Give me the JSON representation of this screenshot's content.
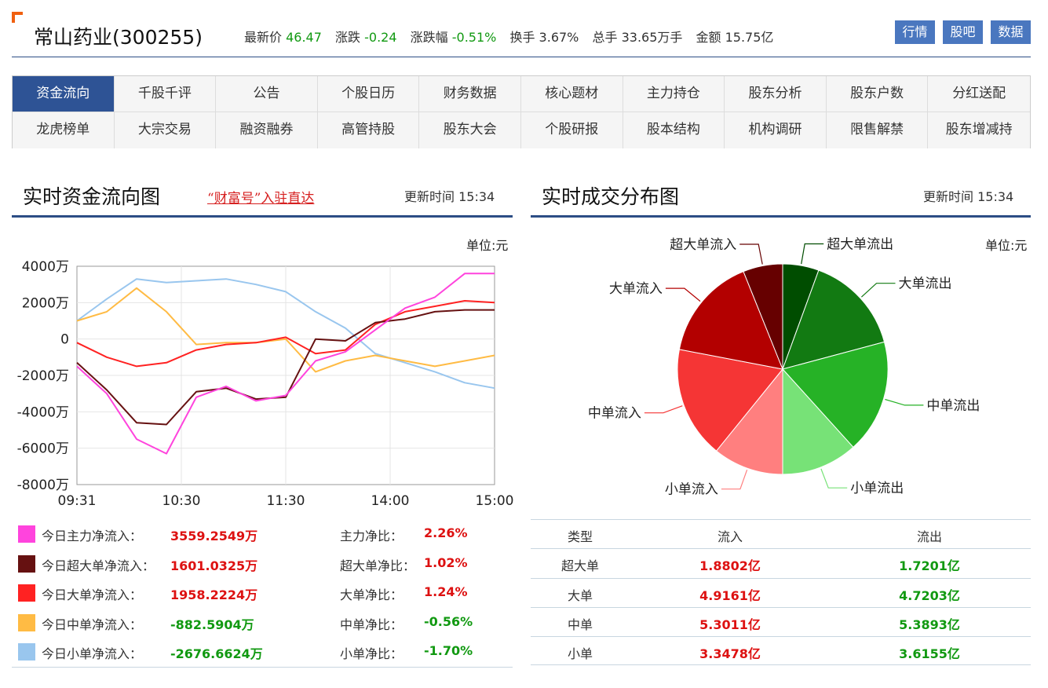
{
  "header": {
    "stock_name": "常山药业(300255)",
    "quote": [
      {
        "label": "最新价",
        "value": "46.47",
        "tone": "g"
      },
      {
        "label": "涨跌",
        "value": "-0.24",
        "tone": "g"
      },
      {
        "label": "涨跌幅",
        "value": "-0.51%",
        "tone": "g"
      },
      {
        "label": "换手",
        "value": "3.67%",
        "tone": "k"
      },
      {
        "label": "总手",
        "value": "33.65万手",
        "tone": "k"
      },
      {
        "label": "金额",
        "value": "15.75亿",
        "tone": "k"
      }
    ],
    "buttons": [
      "行情",
      "股吧",
      "数据"
    ]
  },
  "nav": {
    "items": [
      "资金流向",
      "千股千评",
      "公告",
      "个股日历",
      "财务数据",
      "核心题材",
      "主力持仓",
      "股东分析",
      "股东户数",
      "分红送配",
      "龙虎榜单",
      "大宗交易",
      "融资融券",
      "高管持股",
      "股东大会",
      "个股研报",
      "股本结构",
      "机构调研",
      "限售解禁",
      "股东增减持"
    ],
    "active_index": 0
  },
  "flow_section": {
    "title": "实时资金流向图",
    "link": "“财富号”入驻直达",
    "update_label": "更新时间",
    "update_time": "15:34",
    "unit": "单位:元"
  },
  "dist_section": {
    "title": "实时成交分布图",
    "update_label": "更新时间",
    "update_time": "15:34",
    "unit": "单位:元"
  },
  "colors": {
    "main": "#ff44dd",
    "super": "#661111",
    "large": "#ff2222",
    "medium": "#ffbb44",
    "small": "#99c6ee",
    "accent": "#2c4d85",
    "up": "#dd1111",
    "down": "#119911"
  },
  "legend": [
    {
      "key": "main",
      "label": "今日主力净流入：",
      "value": "3559.2549万",
      "tone": "red",
      "ratio_label": "主力净比：",
      "ratio": "2.26%",
      "ratio_tone": "red"
    },
    {
      "key": "super",
      "label": "今日超大单净流入：",
      "value": "1601.0325万",
      "tone": "red",
      "ratio_label": "超大单净比：",
      "ratio": "1.02%",
      "ratio_tone": "red"
    },
    {
      "key": "large",
      "label": "今日大单净流入：",
      "value": "1958.2224万",
      "tone": "red",
      "ratio_label": "大单净比：",
      "ratio": "1.24%",
      "ratio_tone": "red"
    },
    {
      "key": "medium",
      "label": "今日中单净流入：",
      "value": "-882.5904万",
      "tone": "green",
      "ratio_label": "中单净比：",
      "ratio": "-0.56%",
      "ratio_tone": "green"
    },
    {
      "key": "small",
      "label": "今日小单净流入：",
      "value": "-2676.6624万",
      "tone": "green",
      "ratio_label": "小单净比：",
      "ratio": "-1.70%",
      "ratio_tone": "green"
    }
  ],
  "table": {
    "headers": [
      "类型",
      "流入",
      "流出"
    ],
    "rows": [
      [
        "超大单",
        "1.8802亿",
        "1.7201亿"
      ],
      [
        "大单",
        "4.9161亿",
        "4.7203亿"
      ],
      [
        "中单",
        "5.3011亿",
        "5.3893亿"
      ],
      [
        "小单",
        "3.3478亿",
        "3.6155亿"
      ]
    ]
  },
  "chart_data": [
    {
      "type": "line",
      "x_ticks": [
        "09:31",
        "10:30",
        "11:30",
        "14:00",
        "15:00"
      ],
      "y_ticks": [
        "4000万",
        "2000万",
        "0",
        "-2000万",
        "-4000万",
        "-6000万",
        "-8000万"
      ],
      "ylim": [
        -8000,
        4000
      ],
      "grid": true,
      "series": [
        {
          "key": "main",
          "values": [
            -1500,
            -3000,
            -5500,
            -6300,
            -3200,
            -2600,
            -3400,
            -3100,
            -1200,
            -700,
            500,
            1700,
            2300,
            3600,
            3600
          ]
        },
        {
          "key": "super",
          "values": [
            -1300,
            -2800,
            -4600,
            -4700,
            -2900,
            -2700,
            -3300,
            -3200,
            0,
            -100,
            900,
            1100,
            1500,
            1600,
            1600
          ]
        },
        {
          "key": "large",
          "values": [
            -200,
            -1000,
            -1500,
            -1300,
            -600,
            -300,
            -200,
            100,
            -800,
            -600,
            800,
            1500,
            1800,
            2100,
            2000
          ]
        },
        {
          "key": "medium",
          "values": [
            1000,
            1500,
            2800,
            1500,
            -300,
            -200,
            -200,
            0,
            -1800,
            -1200,
            -900,
            -1200,
            -1500,
            -1200,
            -900
          ]
        },
        {
          "key": "small",
          "values": [
            1000,
            2200,
            3300,
            3100,
            3200,
            3300,
            3000,
            2600,
            1500,
            600,
            -800,
            -1300,
            -1800,
            -2400,
            -2700
          ]
        }
      ]
    },
    {
      "type": "pie",
      "slices": [
        {
          "label": "超大单流出",
          "value": 1.7201,
          "color": "#004d00"
        },
        {
          "label": "大单流出",
          "value": 4.7203,
          "color": "#127a12"
        },
        {
          "label": "中单流出",
          "value": 5.3893,
          "color": "#26b226"
        },
        {
          "label": "小单流出",
          "value": 3.6155,
          "color": "#77e277"
        },
        {
          "label": "小单流入",
          "value": 3.3478,
          "color": "#ff7f7f"
        },
        {
          "label": "中单流入",
          "value": 5.3011,
          "color": "#f53535"
        },
        {
          "label": "大单流入",
          "value": 4.9161,
          "color": "#b30000"
        },
        {
          "label": "超大单流入",
          "value": 1.8802,
          "color": "#660000"
        }
      ]
    }
  ]
}
